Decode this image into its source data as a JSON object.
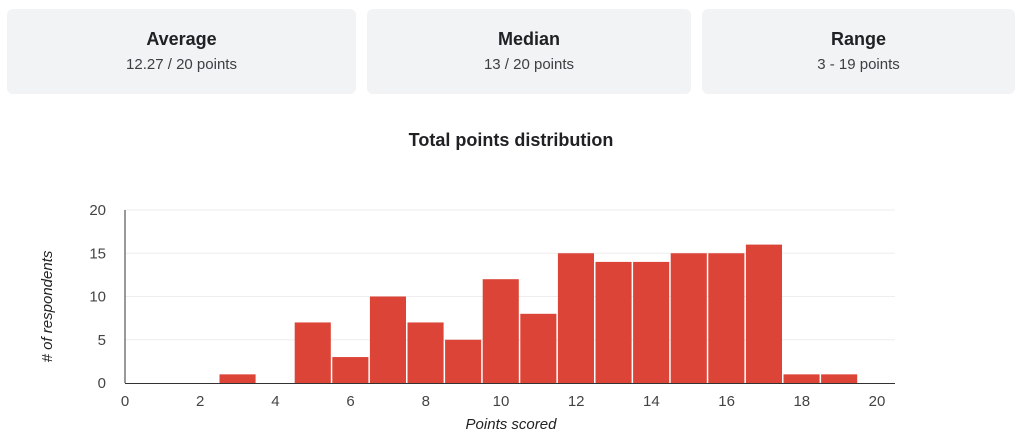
{
  "stats": [
    {
      "title": "Average",
      "value": "12.27 / 20 points"
    },
    {
      "title": "Median",
      "value": "13 / 20 points"
    },
    {
      "title": "Range",
      "value": "3 - 19 points"
    }
  ],
  "colors": {
    "bar": "#db4437",
    "card_background": "#f1f3f4",
    "grid": "#eeeeee",
    "axis": "#333333"
  },
  "chart_data": {
    "type": "bar",
    "title": "Total points distribution",
    "xlabel": "Points scored",
    "ylabel": "# of respondents",
    "xlim": [
      0,
      20
    ],
    "ylim": [
      0,
      20
    ],
    "x_ticks": [
      "0",
      "2",
      "4",
      "6",
      "8",
      "10",
      "12",
      "14",
      "16",
      "18",
      "20"
    ],
    "y_ticks": [
      "0",
      "5",
      "10",
      "15",
      "20"
    ],
    "bin_width": 1,
    "bins": [
      {
        "start": 2.5,
        "value": 1
      },
      {
        "start": 4.5,
        "value": 7
      },
      {
        "start": 5.5,
        "value": 3
      },
      {
        "start": 6.5,
        "value": 10
      },
      {
        "start": 7.5,
        "value": 7
      },
      {
        "start": 8.5,
        "value": 5
      },
      {
        "start": 9.5,
        "value": 12
      },
      {
        "start": 10.5,
        "value": 8
      },
      {
        "start": 11.5,
        "value": 15
      },
      {
        "start": 12.5,
        "value": 14
      },
      {
        "start": 13.5,
        "value": 14
      },
      {
        "start": 14.5,
        "value": 15
      },
      {
        "start": 15.5,
        "value": 15
      },
      {
        "start": 16.5,
        "value": 16
      },
      {
        "start": 17.5,
        "value": 1
      },
      {
        "start": 18.5,
        "value": 1
      }
    ],
    "grid": true,
    "legend": "none"
  }
}
